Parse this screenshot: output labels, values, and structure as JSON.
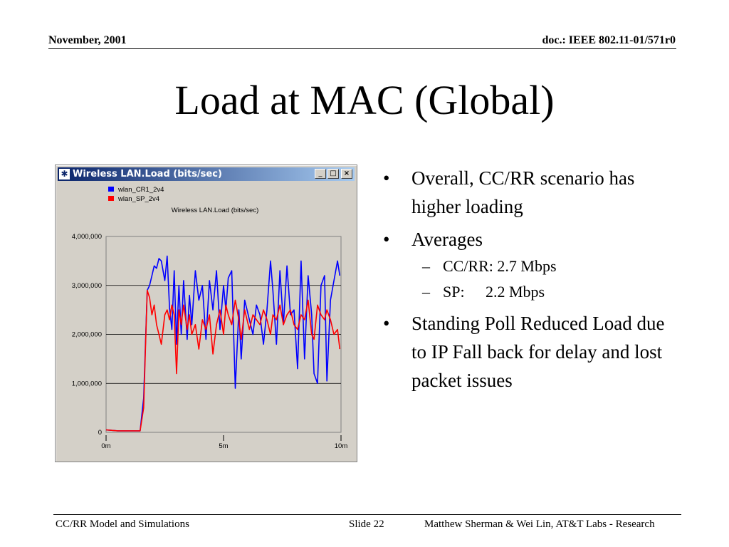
{
  "header": {
    "date": "November, 2001",
    "doc_id": "doc.: IEEE 802.11-01/571r0"
  },
  "title": "Load at MAC (Global)",
  "window": {
    "title": "Wireless LAN.Load (bits/sec)",
    "icon": "star-network-icon",
    "buttons": [
      "minimize",
      "maximize",
      "close"
    ]
  },
  "chart_data": {
    "type": "line",
    "title": "Wireless LAN.Load (bits/sec)",
    "xlabel": "",
    "ylabel": "",
    "ylim": [
      0,
      4000000
    ],
    "xlim": [
      0,
      10
    ],
    "x_ticks": [
      "0m",
      "5m",
      "10m"
    ],
    "y_ticks": [
      "0",
      "1,000,000",
      "2,000,000",
      "3,000,000",
      "4,000,000"
    ],
    "grid": "horizontal",
    "legend": "top-left",
    "series": [
      {
        "name": "wlan_CR1_2v4",
        "color": "#0000ff",
        "x": [
          0,
          0.5,
          1.0,
          1.45,
          1.6,
          1.75,
          1.85,
          1.95,
          2.05,
          2.15,
          2.25,
          2.35,
          2.5,
          2.6,
          2.7,
          2.8,
          2.9,
          3.0,
          3.1,
          3.2,
          3.3,
          3.45,
          3.55,
          3.65,
          3.8,
          3.95,
          4.1,
          4.25,
          4.4,
          4.55,
          4.7,
          4.85,
          5.0,
          5.1,
          5.2,
          5.35,
          5.5,
          5.65,
          5.75,
          5.9,
          6.0,
          6.1,
          6.25,
          6.4,
          6.55,
          6.7,
          6.85,
          7.0,
          7.1,
          7.25,
          7.4,
          7.55,
          7.7,
          7.85,
          8.0,
          8.15,
          8.3,
          8.45,
          8.6,
          8.75,
          8.85,
          9.0,
          9.15,
          9.3,
          9.4,
          9.55,
          9.7,
          9.85,
          9.95
        ],
        "values": [
          50000,
          30000,
          30000,
          30000,
          700000,
          2900000,
          3000000,
          3200000,
          3400000,
          3350000,
          3550000,
          3500000,
          3100000,
          3600000,
          2550000,
          2100000,
          3300000,
          1800000,
          3000000,
          2000000,
          3100000,
          1900000,
          2800000,
          2200000,
          3300000,
          2700000,
          3000000,
          1900000,
          3100000,
          2500000,
          3300000,
          2100000,
          3000000,
          2500000,
          3150000,
          3300000,
          900000,
          2500000,
          1500000,
          2700000,
          2500000,
          2300000,
          2000000,
          2600000,
          2400000,
          1800000,
          2500000,
          3500000,
          2900000,
          1800000,
          3300000,
          2200000,
          3400000,
          2400000,
          2500000,
          1300000,
          3500000,
          1500000,
          3200000,
          2400000,
          1200000,
          1000000,
          3000000,
          3200000,
          1050000,
          2700000,
          3100000,
          3500000,
          3200000
        ]
      },
      {
        "name": "wlan_SP_2v4",
        "color": "#ff0000",
        "x": [
          0,
          0.5,
          1.0,
          1.45,
          1.6,
          1.75,
          1.85,
          1.95,
          2.05,
          2.15,
          2.25,
          2.35,
          2.5,
          2.6,
          2.7,
          2.8,
          2.9,
          3.0,
          3.1,
          3.2,
          3.3,
          3.45,
          3.55,
          3.65,
          3.8,
          3.95,
          4.1,
          4.25,
          4.4,
          4.55,
          4.7,
          4.85,
          5.0,
          5.1,
          5.2,
          5.35,
          5.5,
          5.65,
          5.75,
          5.9,
          6.0,
          6.1,
          6.25,
          6.4,
          6.55,
          6.7,
          6.85,
          7.0,
          7.1,
          7.25,
          7.4,
          7.55,
          7.7,
          7.85,
          8.0,
          8.15,
          8.3,
          8.45,
          8.6,
          8.75,
          8.85,
          9.0,
          9.15,
          9.3,
          9.4,
          9.55,
          9.7,
          9.85,
          9.95
        ],
        "values": [
          50000,
          30000,
          30000,
          30000,
          500000,
          2900000,
          2750000,
          2400000,
          2600000,
          2200000,
          2000000,
          1800000,
          2400000,
          2500000,
          2300000,
          2600000,
          2400000,
          1200000,
          2500000,
          2200000,
          2600000,
          2100000,
          2400000,
          2000000,
          2200000,
          1700000,
          2300000,
          2100000,
          2400000,
          1600000,
          2200000,
          2500000,
          2000000,
          2600000,
          2400000,
          2200000,
          2700000,
          2300000,
          1900000,
          2500000,
          2300000,
          2100000,
          2400000,
          2300000,
          2200000,
          2500000,
          2300000,
          2000000,
          2400000,
          2300000,
          2600000,
          2200000,
          2400000,
          2500000,
          2200000,
          2100000,
          2400000,
          2300000,
          2700000,
          2000000,
          1900000,
          2600000,
          2400000,
          2300000,
          2500000,
          2300000,
          2000000,
          2100000,
          1700000
        ]
      }
    ]
  },
  "bullets": [
    {
      "text": "Overall, CC/RR scenario has higher loading"
    },
    {
      "text": "Averages",
      "sub": [
        {
          "label": "CC/RR:",
          "value": " 2.7 Mbps"
        },
        {
          "label": "SP:",
          "value": "2.2 Mbps"
        }
      ]
    },
    {
      "text": "Standing Poll Reduced Load due to IP Fall back for delay and lost packet issues"
    }
  ],
  "footer": {
    "left": "CC/RR Model and Simulations",
    "slide": "Slide 22",
    "right": "Matthew Sherman & Wei Lin, AT&T Labs - Research"
  }
}
